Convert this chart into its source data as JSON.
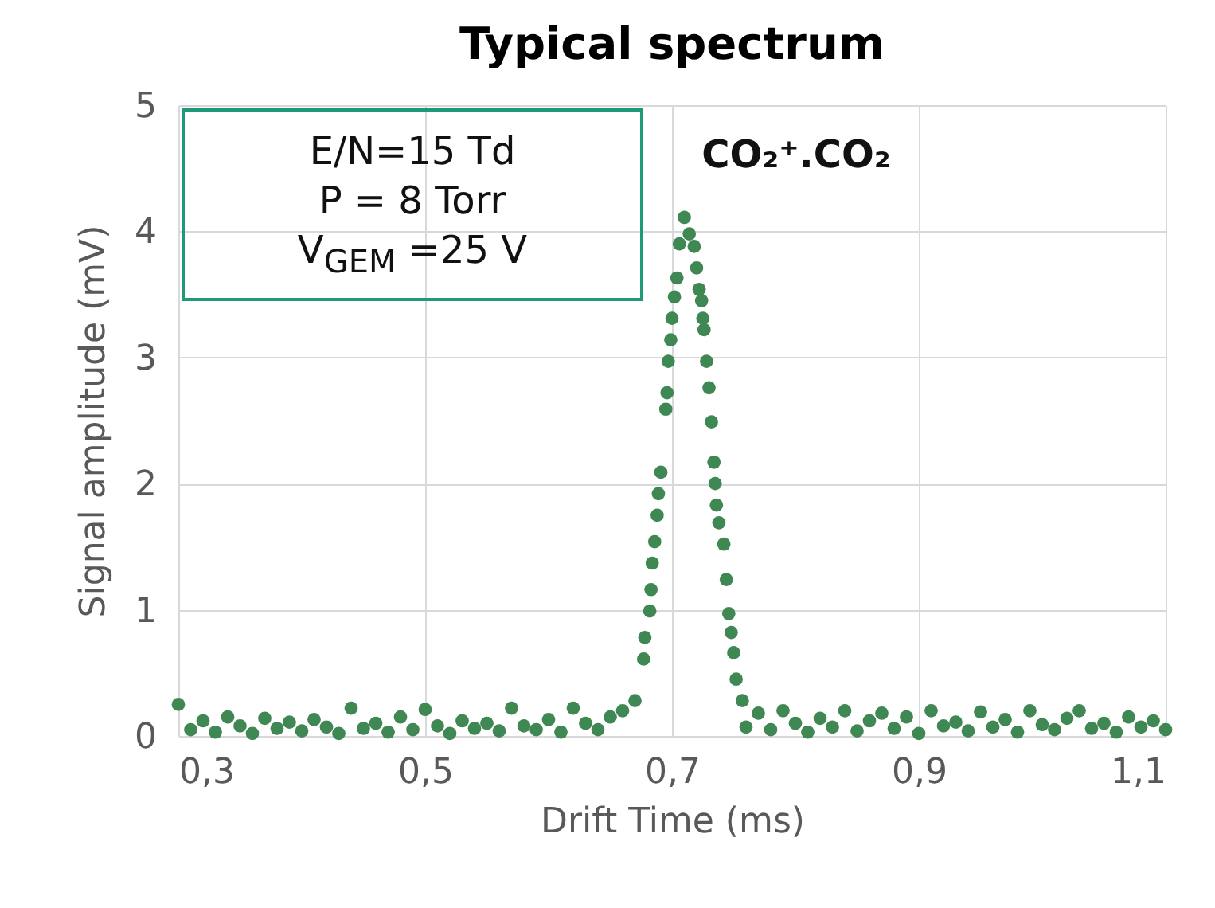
{
  "chart_data": {
    "type": "scatter",
    "title": "Typical spectrum",
    "xlabel": "Drift Time (ms)",
    "ylabel": "Signal amplitude (mV)",
    "x": [
      0.3,
      0.31,
      0.32,
      0.33,
      0.34,
      0.35,
      0.36,
      0.37,
      0.38,
      0.39,
      0.4,
      0.41,
      0.42,
      0.43,
      0.44,
      0.45,
      0.46,
      0.47,
      0.48,
      0.49,
      0.5,
      0.51,
      0.52,
      0.53,
      0.54,
      0.55,
      0.56,
      0.57,
      0.58,
      0.59,
      0.6,
      0.61,
      0.62,
      0.63,
      0.64,
      0.65,
      0.66,
      0.67,
      0.677,
      0.678,
      0.682,
      0.683,
      0.684,
      0.686,
      0.688,
      0.689,
      0.691,
      0.695,
      0.696,
      0.697,
      0.699,
      0.7,
      0.702,
      0.704,
      0.706,
      0.71,
      0.714,
      0.718,
      0.72,
      0.722,
      0.724,
      0.725,
      0.726,
      0.728,
      0.73,
      0.732,
      0.734,
      0.735,
      0.736,
      0.738,
      0.742,
      0.744,
      0.746,
      0.748,
      0.75,
      0.752,
      0.757,
      0.76,
      0.77,
      0.78,
      0.79,
      0.8,
      0.81,
      0.82,
      0.83,
      0.84,
      0.85,
      0.86,
      0.87,
      0.88,
      0.89,
      0.9,
      0.91,
      0.92,
      0.93,
      0.94,
      0.95,
      0.96,
      0.97,
      0.98,
      0.99,
      1.0,
      1.01,
      1.02,
      1.03,
      1.04,
      1.05,
      1.06,
      1.07,
      1.08,
      1.09,
      1.1
    ],
    "series": [
      {
        "color": "#3f8753",
        "values": [
          0.25,
          0.05,
          0.12,
          0.03,
          0.15,
          0.08,
          0.02,
          0.14,
          0.06,
          0.11,
          0.04,
          0.13,
          0.07,
          0.02,
          0.22,
          0.06,
          0.1,
          0.03,
          0.15,
          0.05,
          0.21,
          0.08,
          0.02,
          0.12,
          0.06,
          0.1,
          0.04,
          0.22,
          0.08,
          0.05,
          0.13,
          0.03,
          0.22,
          0.1,
          0.05,
          0.15,
          0.2,
          0.28,
          0.61,
          0.78,
          0.99,
          1.16,
          1.37,
          1.54,
          1.75,
          1.92,
          2.09,
          2.59,
          2.72,
          2.97,
          3.14,
          3.31,
          3.48,
          3.63,
          3.9,
          4.11,
          3.98,
          3.88,
          3.71,
          3.54,
          3.45,
          3.31,
          3.22,
          2.97,
          2.76,
          2.49,
          2.17,
          2.0,
          1.83,
          1.69,
          1.52,
          1.24,
          0.97,
          0.82,
          0.66,
          0.45,
          0.28,
          0.07,
          0.18,
          0.05,
          0.2,
          0.1,
          0.03,
          0.14,
          0.07,
          0.2,
          0.04,
          0.12,
          0.18,
          0.06,
          0.15,
          0.02,
          0.2,
          0.08,
          0.11,
          0.04,
          0.19,
          0.07,
          0.13,
          0.03,
          0.2,
          0.09,
          0.05,
          0.14,
          0.2,
          0.06,
          0.1,
          0.03,
          0.15,
          0.07,
          0.12,
          0.05
        ]
      }
    ],
    "xlim": [
      0.3,
      1.1
    ],
    "ylim": [
      0,
      5
    ],
    "xticks": [
      {
        "value": 0.3,
        "label": "0,3"
      },
      {
        "value": 0.5,
        "label": "0,5"
      },
      {
        "value": 0.7,
        "label": "0,7"
      },
      {
        "value": 0.9,
        "label": "0,9"
      },
      {
        "value": 1.1,
        "label": "1,1"
      }
    ],
    "yticks": [
      0,
      1,
      2,
      3,
      4,
      5
    ],
    "grid": true,
    "marker": "circle",
    "annotations": [
      "E/N=15 Td",
      "P = 8 Torr",
      "V$_{GEM}$ =25 V",
      "CO₂⁺.CO₂"
    ]
  }
}
